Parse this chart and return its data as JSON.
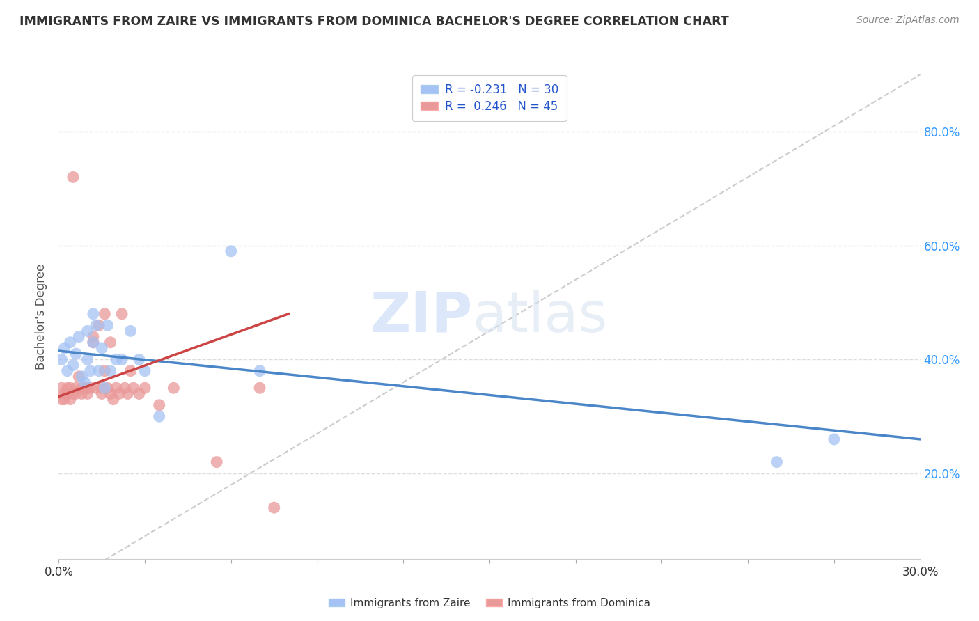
{
  "title": "IMMIGRANTS FROM ZAIRE VS IMMIGRANTS FROM DOMINICA BACHELOR'S DEGREE CORRELATION CHART",
  "source": "Source: ZipAtlas.com",
  "ylabel": "Bachelor's Degree",
  "xlim": [
    0.0,
    0.3
  ],
  "ylim": [
    0.05,
    0.9
  ],
  "yticks": [
    0.2,
    0.4,
    0.6,
    0.8
  ],
  "xticks": [
    0.0,
    0.03,
    0.06,
    0.09,
    0.12,
    0.15,
    0.18,
    0.21,
    0.24,
    0.27,
    0.3
  ],
  "zaire_color": "#a4c2f4",
  "dominica_color": "#ea9999",
  "zaire_line_color": "#4a86c8",
  "dominica_line_color": "#cc4444",
  "diagonal_color": "#cccccc",
  "background_color": "#ffffff",
  "zaire_x": [
    0.001,
    0.002,
    0.003,
    0.004,
    0.005,
    0.006,
    0.007,
    0.008,
    0.009,
    0.01,
    0.01,
    0.011,
    0.012,
    0.012,
    0.013,
    0.014,
    0.015,
    0.016,
    0.017,
    0.018,
    0.02,
    0.022,
    0.025,
    0.028,
    0.03,
    0.035,
    0.06,
    0.07,
    0.25,
    0.27
  ],
  "zaire_y": [
    0.4,
    0.42,
    0.38,
    0.43,
    0.39,
    0.41,
    0.44,
    0.37,
    0.36,
    0.45,
    0.4,
    0.38,
    0.48,
    0.43,
    0.46,
    0.38,
    0.42,
    0.35,
    0.46,
    0.38,
    0.4,
    0.4,
    0.45,
    0.4,
    0.38,
    0.3,
    0.59,
    0.38,
    0.22,
    0.26
  ],
  "dominica_x": [
    0.001,
    0.001,
    0.002,
    0.002,
    0.003,
    0.003,
    0.004,
    0.004,
    0.005,
    0.005,
    0.006,
    0.006,
    0.007,
    0.008,
    0.008,
    0.009,
    0.01,
    0.01,
    0.011,
    0.012,
    0.012,
    0.013,
    0.014,
    0.015,
    0.015,
    0.016,
    0.016,
    0.017,
    0.018,
    0.018,
    0.019,
    0.02,
    0.021,
    0.022,
    0.023,
    0.024,
    0.025,
    0.026,
    0.028,
    0.03,
    0.035,
    0.04,
    0.055,
    0.07,
    0.075
  ],
  "dominica_y": [
    0.35,
    0.33,
    0.34,
    0.33,
    0.35,
    0.34,
    0.35,
    0.33,
    0.34,
    0.72,
    0.35,
    0.34,
    0.37,
    0.35,
    0.34,
    0.35,
    0.35,
    0.34,
    0.35,
    0.44,
    0.43,
    0.35,
    0.46,
    0.35,
    0.34,
    0.48,
    0.38,
    0.35,
    0.34,
    0.43,
    0.33,
    0.35,
    0.34,
    0.48,
    0.35,
    0.34,
    0.38,
    0.35,
    0.34,
    0.35,
    0.32,
    0.35,
    0.22,
    0.35,
    0.14
  ],
  "zaire_trend_x": [
    0.0,
    0.3
  ],
  "zaire_trend_y": [
    0.415,
    0.26
  ],
  "dominica_trend_x": [
    0.0,
    0.08
  ],
  "dominica_trend_y": [
    0.335,
    0.48
  ]
}
